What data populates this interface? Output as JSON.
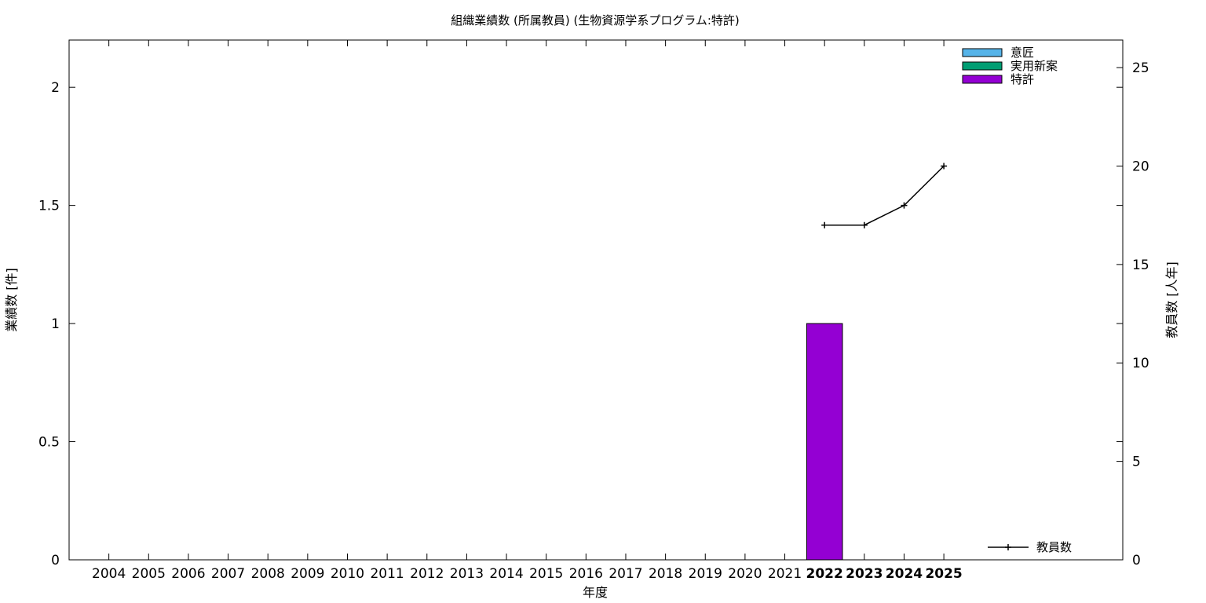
{
  "chart_data": {
    "type": "bar",
    "title": "組織業績数 (所属教員) (生物資源学系プログラム:特許)",
    "xlabel": "年度",
    "ylabel": "業績数 [件]",
    "y2label": "教員数 [人年]",
    "categories": [
      "2004",
      "2005",
      "2006",
      "2007",
      "2008",
      "2009",
      "2010",
      "2011",
      "2012",
      "2013",
      "2014",
      "2015",
      "2016",
      "2017",
      "2018",
      "2019",
      "2020",
      "2021",
      "2022",
      "2023",
      "2024",
      "2025"
    ],
    "highlighted_categories": [
      "2022",
      "2023",
      "2024",
      "2025"
    ],
    "ylim": [
      0,
      2.2
    ],
    "yticks": [
      0,
      0.5,
      1,
      1.5,
      2
    ],
    "ytick_labels": [
      "0",
      "0.5",
      "1",
      "1.5",
      "2"
    ],
    "y2lim": [
      0,
      26.4
    ],
    "y2ticks": [
      0,
      5,
      10,
      15,
      20,
      25
    ],
    "y2tick_labels": [
      "0",
      "5",
      "10",
      "15",
      "20",
      "25"
    ],
    "series": [
      {
        "name": "意匠",
        "color": "#56b4e9",
        "values": [
          0,
          0,
          0,
          0,
          0,
          0,
          0,
          0,
          0,
          0,
          0,
          0,
          0,
          0,
          0,
          0,
          0,
          0,
          0,
          0,
          0,
          0
        ]
      },
      {
        "name": "実用新案",
        "color": "#009e73",
        "values": [
          0,
          0,
          0,
          0,
          0,
          0,
          0,
          0,
          0,
          0,
          0,
          0,
          0,
          0,
          0,
          0,
          0,
          0,
          0,
          0,
          0,
          0
        ]
      },
      {
        "name": "特許",
        "color": "#9400d3",
        "values": [
          0,
          0,
          0,
          0,
          0,
          0,
          0,
          0,
          0,
          0,
          0,
          0,
          0,
          0,
          0,
          0,
          0,
          0,
          1,
          0,
          0,
          0
        ]
      }
    ],
    "line_series": {
      "name": "教員数",
      "color": "#000000",
      "axis": "right",
      "x": [
        "2022",
        "2023",
        "2024",
        "2025"
      ],
      "values": [
        17,
        17,
        18,
        20
      ]
    },
    "legend_position": "top-right",
    "line_legend_position": "bottom-right",
    "grid": false
  }
}
